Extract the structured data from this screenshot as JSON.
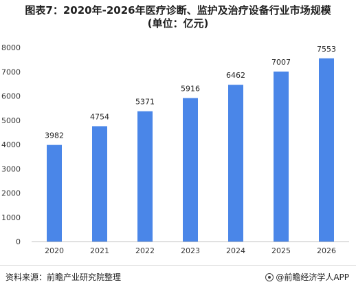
{
  "title_line1": "图表7：2020年-2026年医疗诊断、监护及治疗设备行业市场规模",
  "title_line2": "(单位：亿元)",
  "chart_data": {
    "type": "bar",
    "categories": [
      "2020",
      "2021",
      "2022",
      "2023",
      "2024",
      "2025",
      "2026"
    ],
    "values": [
      3982,
      4754,
      5371,
      5916,
      6462,
      7007,
      7553
    ],
    "data_labels": [
      "3982",
      "4754",
      "5371",
      "5916",
      "6462",
      "7007",
      "7553"
    ],
    "y_ticks": [
      "0",
      "1000",
      "2000",
      "3000",
      "4000",
      "5000",
      "6000",
      "7000",
      "8000"
    ],
    "ylim": [
      0,
      8000
    ],
    "grid": false,
    "legend": "none",
    "bar_color": "#4a86e8",
    "xlabel": "",
    "ylabel": ""
  },
  "footer": {
    "source": "资料来源：前瞻产业研究院整理",
    "credit": "@前瞻经济学人APP"
  }
}
